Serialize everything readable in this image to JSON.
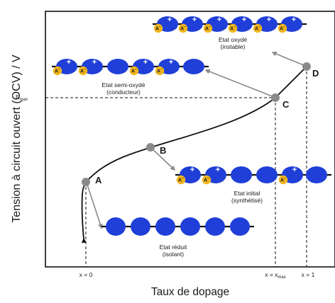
{
  "colors": {
    "polymer": "#1f3fd8",
    "counter_ion": "#f2b61c",
    "marker": "#8a8a8a",
    "curve": "#111111"
  },
  "axes": {
    "y_label": "Tension à circuit ouvert  (OCV) / V",
    "x_label": "Taux de dopage",
    "y_tick_emax": "E",
    "y_tick_emax_sub": "max",
    "x_tick_0": "x = 0",
    "x_tick_xmax_prefix": "x = x",
    "x_tick_xmax_sub": "max",
    "x_tick_1": "x = 1"
  },
  "points": [
    {
      "id": "A",
      "label": "A"
    },
    {
      "id": "B",
      "label": "B"
    },
    {
      "id": "C",
      "label": "C"
    },
    {
      "id": "D",
      "label": "D"
    }
  ],
  "states": {
    "oxydized": {
      "line1": "Etat oxydé",
      "line2": "(instable)"
    },
    "semi_oxydized": {
      "line1": "Etat semi-oxydé",
      "line2": "(conducteur)"
    },
    "initial": {
      "line1": "Etat initial",
      "line2": "(synthétisé)"
    },
    "reduced": {
      "line1": "Etat réduit",
      "line2": "(isolant)"
    }
  },
  "symbols": {
    "anion": "A",
    "anion_charge": "−",
    "cation_charge": "+"
  }
}
